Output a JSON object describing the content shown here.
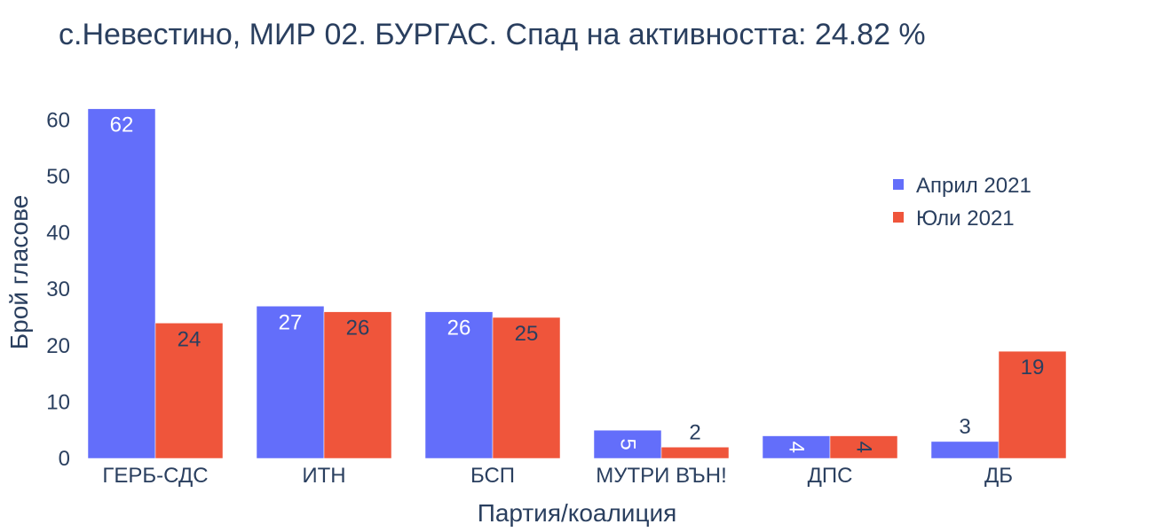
{
  "chart_data": {
    "type": "bar",
    "title": "с.Невестино, МИР 02. БУРГАС. Спад на активността: 24.82 %",
    "xlabel": "Партия/коалиция",
    "ylabel": "Брой гласове",
    "categories": [
      "ГЕРБ-СДС",
      "ИТН",
      "БСП",
      "МУТРИ ВЪН!",
      "ДПС",
      "ДБ"
    ],
    "series": [
      {
        "name": "Април 2021",
        "color": "#636efa",
        "values": [
          62,
          27,
          26,
          5,
          4,
          3
        ]
      },
      {
        "name": "Юли 2021",
        "color": "#ef553b",
        "values": [
          24,
          26,
          25,
          2,
          4,
          19
        ]
      }
    ],
    "ylim": [
      0,
      63.2
    ],
    "yticks": [
      0,
      10,
      20,
      30,
      40,
      50,
      60
    ],
    "grid": false,
    "legend_position": "top-right"
  }
}
